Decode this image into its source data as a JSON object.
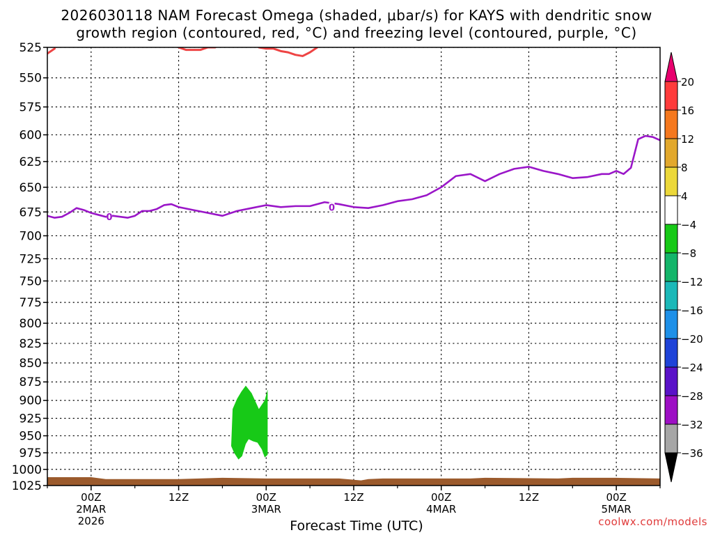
{
  "title": {
    "line1": "2026030118 NAM Forecast Omega (shaded, μbar/s) for KAYS with dendritic snow",
    "line2": "growth region (contoured, red, °C) and freezing level (contoured, purple, °C)"
  },
  "credit": "coolwx.com/models",
  "chart_data": {
    "type": "area",
    "title": "2026030118 NAM Forecast Omega (shaded, μbar/s) for KAYS with dendritic snow growth region (contoured, red, °C) and freezing level (contoured, purple, °C)",
    "xlabel": "Forecast Time (UTC)",
    "ylabel": "",
    "xlim": [
      -6,
      78
    ],
    "ylim": [
      1025,
      525
    ],
    "y_scale": "inverted pressure (hPa)",
    "grid": true,
    "y_ticks": [
      525,
      550,
      575,
      600,
      625,
      650,
      675,
      700,
      725,
      750,
      775,
      800,
      825,
      850,
      875,
      900,
      925,
      950,
      975,
      1000,
      1025
    ],
    "x_ticks": [
      {
        "x": 0,
        "label": "00Z",
        "sub1": "2MAR",
        "sub2": "2026"
      },
      {
        "x": 12,
        "label": "12Z",
        "sub1": "",
        "sub2": ""
      },
      {
        "x": 24,
        "label": "00Z",
        "sub1": "3MAR",
        "sub2": ""
      },
      {
        "x": 36,
        "label": "12Z",
        "sub1": "",
        "sub2": ""
      },
      {
        "x": 48,
        "label": "00Z",
        "sub1": "4MAR",
        "sub2": ""
      },
      {
        "x": 60,
        "label": "12Z",
        "sub1": "",
        "sub2": ""
      },
      {
        "x": 72,
        "label": "00Z",
        "sub1": "5MAR",
        "sub2": ""
      }
    ],
    "colorbar": {
      "labels": [
        "20",
        "16",
        "12",
        "8",
        "4",
        "−4",
        "−8",
        "−12",
        "−16",
        "−20",
        "−24",
        "−28",
        "−32",
        "−36"
      ],
      "colors": [
        "#e8006e",
        "#ff3b3b",
        "#f5781e",
        "#e2a82c",
        "#ecd83a",
        "#ffffff",
        "#17c917",
        "#14b56a",
        "#1bb8b8",
        "#1e90e8",
        "#1f43d8",
        "#5a12c8",
        "#9d0fc4",
        "#a6a6a6",
        "#000000"
      ]
    },
    "series": [
      {
        "name": "freezing level",
        "color": "#9a16c8",
        "x": [
          -6,
          -5,
          -4,
          -3,
          -2,
          -1,
          0,
          1,
          2,
          3,
          4,
          5,
          6,
          7,
          8,
          9,
          10,
          11,
          12,
          14,
          16,
          18,
          20,
          22,
          24,
          26,
          28,
          30,
          32,
          34,
          36,
          38,
          40,
          42,
          44,
          46,
          48,
          50,
          52,
          54,
          56,
          58,
          60,
          62,
          64,
          66,
          68,
          70,
          71,
          72,
          73,
          74,
          75,
          76,
          77,
          78
        ],
        "y": [
          679,
          681,
          680,
          676,
          671,
          673,
          676,
          678,
          680,
          679,
          680,
          681,
          679,
          674,
          674,
          672,
          668,
          667,
          670,
          673,
          676,
          679,
          674,
          671,
          668,
          670,
          669,
          669,
          665,
          667,
          670,
          671,
          668,
          664,
          662,
          658,
          650,
          639,
          637,
          644,
          637,
          632,
          630,
          634,
          637,
          641,
          640,
          637,
          637,
          634,
          637,
          631,
          604,
          601,
          602,
          605
        ]
      },
      {
        "name": "dendritic growth region",
        "color": "#ee4444",
        "segments": [
          {
            "x": [
              -6,
              -5
            ],
            "y": [
              530,
              526
            ]
          },
          {
            "x": [
              12,
              13,
              14,
              15,
              16,
              17
            ],
            "y": [
              525,
              527,
              527,
              527,
              525,
              525
            ]
          },
          {
            "x": [
              23,
              24,
              25,
              26,
              27,
              28,
              29,
              30,
              31
            ],
            "y": [
              525,
              526,
              526,
              528,
              529,
              531,
              532,
              529,
              525
            ]
          }
        ]
      },
      {
        "name": "omega",
        "color": "#17c917",
        "polygon": {
          "x": [
            19.4,
            20.0,
            20.6,
            21.2,
            22.0,
            23.0,
            23.8,
            24.2,
            24.2,
            23.8,
            23.4,
            22.8,
            22.2,
            21.6,
            21.2,
            20.7,
            20.2,
            19.6,
            19.2,
            19.4
          ],
          "y": [
            912,
            898,
            888,
            880,
            890,
            912,
            900,
            885,
            978,
            982,
            970,
            960,
            958,
            955,
            962,
            980,
            985,
            975,
            965,
            912
          ]
        }
      },
      {
        "name": "terrain",
        "color": "#9b5a2c",
        "x": [
          -6,
          0,
          2,
          12,
          18,
          24,
          28,
          34,
          37,
          38,
          40,
          46,
          52,
          54,
          64,
          66,
          72,
          78
        ],
        "y": [
          1012,
          1012,
          1015,
          1015,
          1013,
          1014,
          1014,
          1014,
          1017,
          1015,
          1014,
          1014,
          1014,
          1013,
          1014,
          1013,
          1013,
          1014
        ]
      }
    ]
  }
}
